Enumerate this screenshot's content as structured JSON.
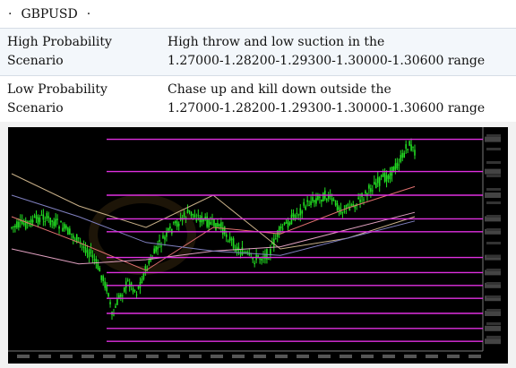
{
  "header": {
    "bullet": "·",
    "symbol": "GBPUSD",
    "bullet_end": "·"
  },
  "scenarios": [
    {
      "label": "High Probability Scenario",
      "text_line1": "High throw and low suction in the",
      "text_line2": "1.27000-1.28200-1.29300-1.30000-1.30600 range"
    },
    {
      "label": "Low Probability Scenario",
      "text_line1": "Chase up and kill down outside the",
      "text_line2": "1.27000-1.28200-1.29300-1.30000-1.30600 range"
    }
  ],
  "chart": {
    "background": "#000000",
    "candle_color": "#22dd22",
    "level_color": "#e030e0",
    "ma_colors": [
      "#c8b088",
      "#e07070",
      "#e0a0c0",
      "#8080c0"
    ],
    "level_lines_y": [
      0.04,
      0.19,
      0.3,
      0.41,
      0.47,
      0.59,
      0.66,
      0.72,
      0.78,
      0.85,
      0.92,
      0.98
    ]
  }
}
